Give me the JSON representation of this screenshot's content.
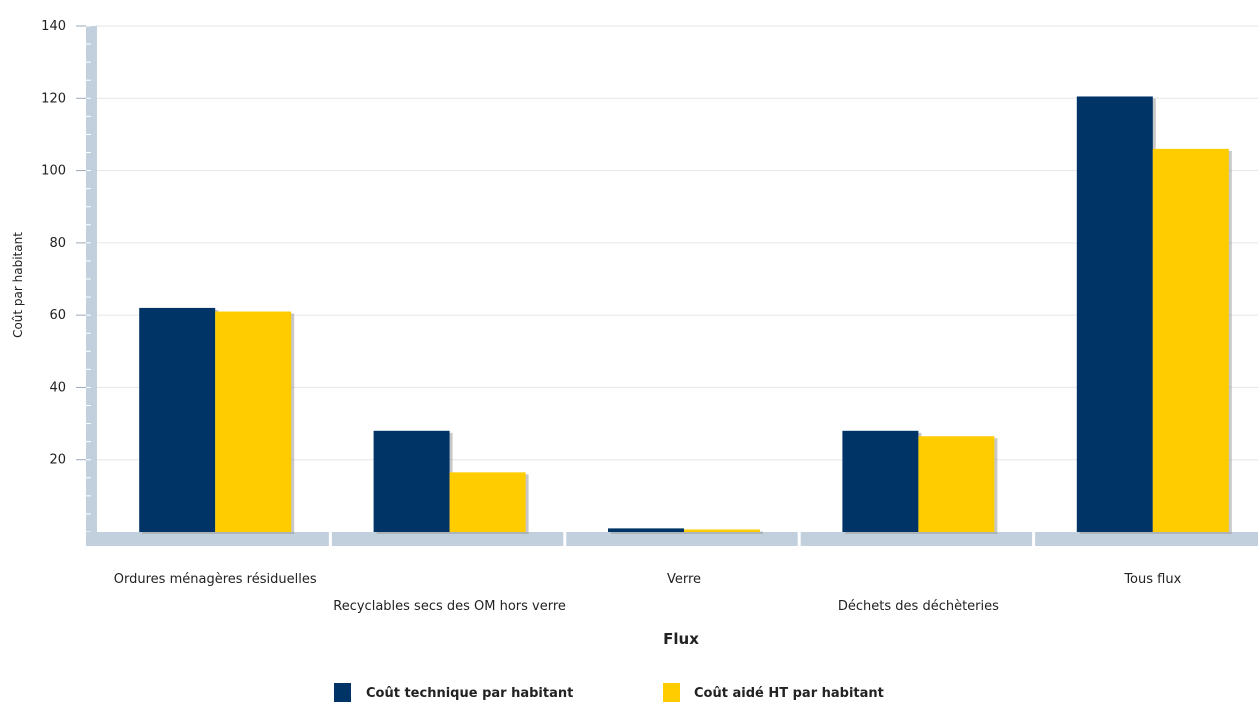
{
  "chart_data": {
    "type": "bar",
    "title": "",
    "xlabel": "Flux",
    "ylabel": "Coût par habitant",
    "ylim": [
      0,
      140
    ],
    "yticks": [
      20,
      40,
      60,
      80,
      100,
      120,
      140
    ],
    "grid": true,
    "legend_position": "bottom",
    "categories": [
      "Ordures ménagères résiduelles",
      "Recyclables secs des OM hors verre",
      "Verre",
      "Déchets des déchèteries",
      "Tous flux"
    ],
    "series": [
      {
        "name": "Coût technique par habitant",
        "color": "#003366",
        "values": [
          62,
          28,
          1,
          28,
          120.5
        ]
      },
      {
        "name": "Coût aidé HT par habitant",
        "color": "#ffcc00",
        "values": [
          61,
          16.5,
          0.7,
          26.5,
          106
        ]
      }
    ],
    "colors": {
      "axis": "#c2d0de",
      "grid": "#e6e6e6",
      "shadow": "#9a9a9a"
    }
  }
}
